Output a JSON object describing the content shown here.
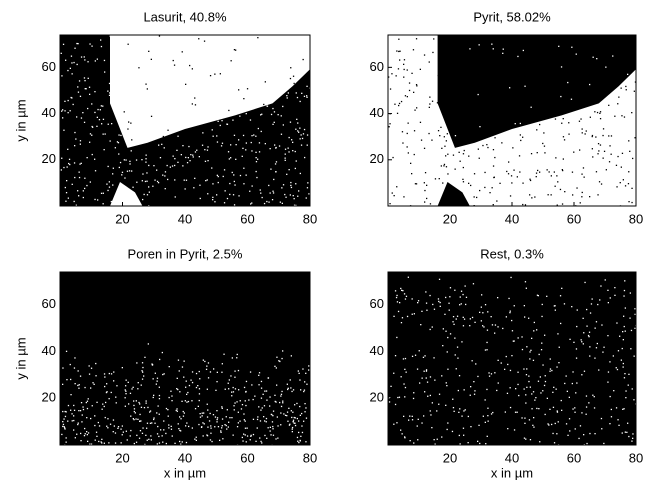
{
  "chart_data": [
    {
      "type": "image",
      "title": "Lasurit, 40.8%",
      "xlim": [
        0,
        80
      ],
      "ylim": [
        0,
        74
      ],
      "xticks": [
        20,
        40,
        60,
        80
      ],
      "yticks": [
        20,
        40,
        60
      ],
      "ylabel": "y in µm"
    },
    {
      "type": "image",
      "title": "Pyrit, 58.02%",
      "xlim": [
        0,
        80
      ],
      "ylim": [
        0,
        74
      ],
      "xticks": [
        20,
        40,
        60,
        80
      ],
      "yticks": [
        20,
        40,
        60
      ]
    },
    {
      "type": "image",
      "title": "Poren in Pyrit, 2.5%",
      "xlim": [
        0,
        80
      ],
      "ylim": [
        0,
        74
      ],
      "xticks": [
        20,
        40,
        60,
        80
      ],
      "yticks": [
        20,
        40,
        60
      ],
      "xlabel": "x in µm",
      "ylabel": "y in µm"
    },
    {
      "type": "image",
      "title": "Rest, 0.3%",
      "xlim": [
        0,
        80
      ],
      "ylim": [
        0,
        74
      ],
      "xticks": [
        20,
        40,
        60,
        80
      ],
      "yticks": [
        20,
        40,
        60
      ],
      "xlabel": "x in µm"
    }
  ]
}
